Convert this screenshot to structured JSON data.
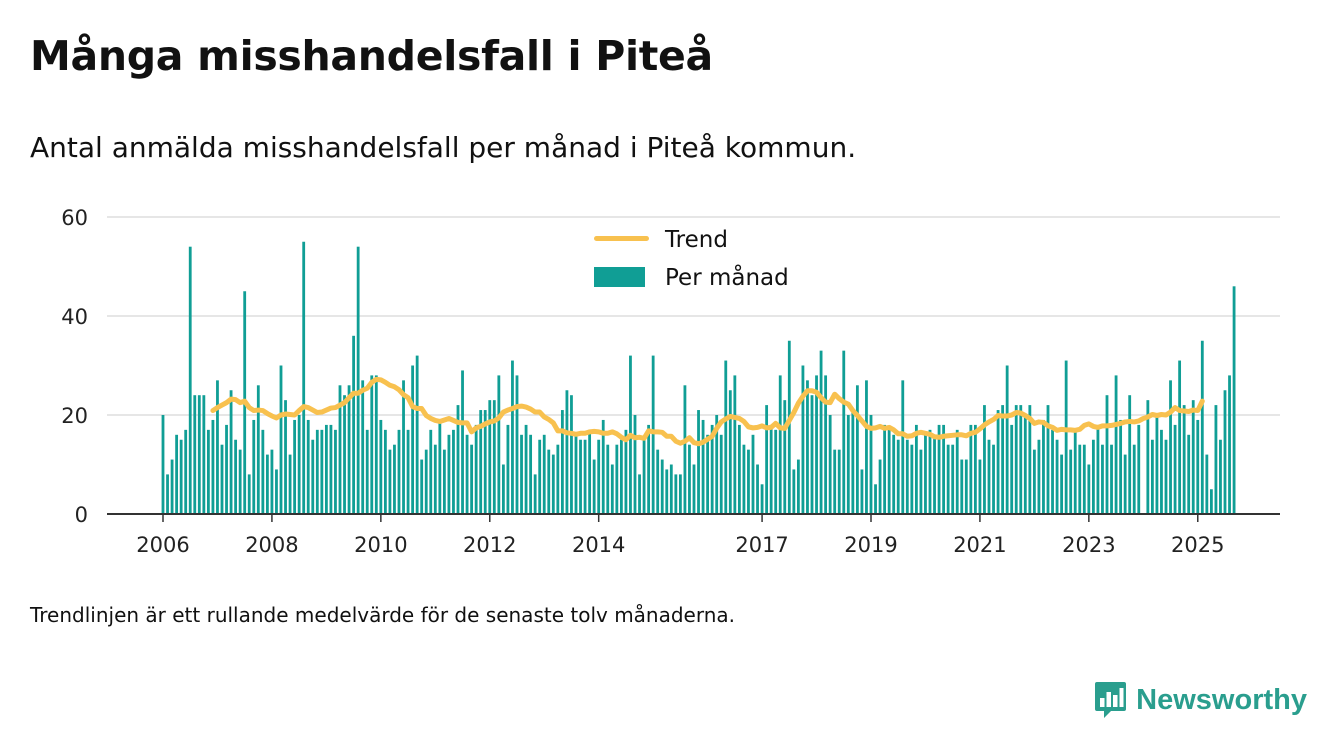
{
  "title": "Många misshandelsfall i Piteå",
  "subtitle": "Antal anmälda misshandelsfall per månad i Piteå kommun.",
  "footnote": "Trendlinjen är ett rullande medelvärde för de senaste tolv månaderna.",
  "brand": {
    "name": "Newsworthy",
    "icon": "newsworthy-logo-icon",
    "color": "#2a9e8e"
  },
  "chart_data": {
    "type": "bar",
    "x_unit": "month",
    "x_start": "2006-01",
    "x_end": "2025-07",
    "ylim": [
      0,
      60
    ],
    "y_ticks": [
      "0",
      "20",
      "40",
      "60"
    ],
    "x_ticks": [
      "2006",
      "2008",
      "2010",
      "2012",
      "2014",
      "2017",
      "2019",
      "2021",
      "2023",
      "2025"
    ],
    "grid": true,
    "legend_position": "top-center",
    "colors": {
      "bars": "#109e95",
      "trend": "#f8c14f",
      "grid": "#dddddd",
      "axis": "#333333"
    },
    "series": [
      {
        "name": "Per månad",
        "type": "bar",
        "values": [
          20,
          8,
          11,
          16,
          15,
          17,
          54,
          24,
          24,
          24,
          17,
          19,
          27,
          14,
          18,
          25,
          15,
          13,
          45,
          8,
          19,
          26,
          17,
          12,
          13,
          9,
          30,
          23,
          12,
          19,
          20,
          55,
          19,
          15,
          17,
          17,
          18,
          18,
          17,
          26,
          24,
          26,
          36,
          54,
          27,
          17,
          28,
          28,
          19,
          17,
          13,
          14,
          17,
          27,
          17,
          30,
          32,
          11,
          13,
          17,
          14,
          19,
          13,
          16,
          17,
          22,
          29,
          16,
          14,
          18,
          21,
          21,
          23,
          23,
          28,
          10,
          18,
          31,
          28,
          16,
          18,
          16,
          8,
          15,
          16,
          13,
          12,
          14,
          21,
          25,
          24,
          16,
          15,
          15,
          17,
          11,
          15,
          19,
          14,
          10,
          14,
          15,
          17,
          32,
          20,
          8,
          15,
          18,
          32,
          13,
          11,
          9,
          10,
          8,
          8,
          26,
          14,
          10,
          21,
          19,
          16,
          18,
          20,
          16,
          31,
          25,
          28,
          18,
          14,
          13,
          16,
          10,
          6,
          22,
          18,
          17,
          28,
          23,
          35,
          9,
          11,
          30,
          27,
          24,
          28,
          33,
          28,
          20,
          13,
          13,
          33,
          20,
          21,
          26,
          9,
          27,
          20,
          6,
          11,
          18,
          17,
          16,
          15,
          27,
          15,
          14,
          18,
          13,
          16,
          17,
          16,
          18,
          18,
          14,
          14,
          17,
          11,
          11,
          18,
          18,
          11,
          22,
          15,
          14,
          21,
          22,
          30,
          18,
          22,
          22,
          20,
          22,
          13,
          15,
          19,
          22,
          17,
          15,
          12,
          31,
          13,
          17,
          14,
          14,
          10,
          15,
          18,
          14,
          24,
          14,
          28,
          19,
          12,
          24,
          14,
          18,
          0,
          23,
          15,
          20,
          17,
          15,
          27,
          18,
          31,
          22,
          16,
          23,
          19,
          35,
          12,
          5,
          22,
          15,
          25,
          28,
          46
        ]
      },
      {
        "name": "Trend",
        "type": "line",
        "values": [
          null,
          null,
          null,
          null,
          null,
          null,
          null,
          null,
          null,
          null,
          null,
          20.9,
          21.5,
          22,
          22.5,
          23.2,
          23.1,
          22.5,
          22.8,
          21.5,
          20.9,
          21,
          20.9,
          20.3,
          19.8,
          19.4,
          20,
          20.2,
          20.1,
          20,
          20.9,
          21.7,
          21.5,
          21,
          20.5,
          20.6,
          21,
          21.4,
          21.5,
          22,
          22.5,
          23.5,
          24.4,
          24.4,
          25,
          25.4,
          26.6,
          27.2,
          27.1,
          26.6,
          26,
          25.7,
          25.1,
          24.1,
          23.5,
          21.7,
          21.3,
          21.3,
          19.9,
          19.3,
          18.9,
          18.7,
          19,
          19.3,
          18.9,
          18.5,
          18.4,
          18.4,
          16.6,
          17.4,
          17.7,
          18.2,
          18.6,
          18.8,
          19.4,
          20.6,
          21,
          21.3,
          21.7,
          21.8,
          21.6,
          21.2,
          20.6,
          20.6,
          19.6,
          19.1,
          18.4,
          16.8,
          16.8,
          16.4,
          16.3,
          16.1,
          16.3,
          16.3,
          16.6,
          16.7,
          16.6,
          16.3,
          16.3,
          16.6,
          16.2,
          15.5,
          15,
          15.9,
          15.4,
          15.5,
          15.3,
          16.8,
          16.6,
          16.6,
          16.5,
          15.7,
          15.7,
          14.7,
          14.3,
          14.7,
          15.4,
          14.4,
          14.2,
          14.5,
          15.1,
          15.7,
          17.3,
          18.6,
          19.2,
          19.7,
          19.5,
          19.3,
          18.7,
          17.6,
          17.4,
          17.5,
          17.8,
          17.4,
          17.5,
          18.3,
          17.4,
          17.3,
          18.9,
          20.5,
          22.4,
          23.8,
          24.9,
          24.9,
          24.6,
          23.5,
          22.6,
          22.5,
          24.2,
          23.3,
          22.6,
          22.2,
          20.9,
          19.9,
          18.8,
          17.7,
          17.3,
          17.4,
          17.7,
          17.3,
          17.5,
          17,
          16.2,
          16.2,
          15.7,
          15.8,
          16.3,
          16.5,
          16.3,
          16.1,
          15.6,
          15.5,
          15.7,
          15.8,
          15.9,
          16,
          16,
          15.8,
          16.3,
          16.5,
          17.2,
          18,
          18.6,
          19.1,
          19.9,
          19.8,
          19.8,
          20,
          20.5,
          20.4,
          19.9,
          19.3,
          18.3,
          18.6,
          18.5,
          17.8,
          17.5,
          16.9,
          17.1,
          17,
          17,
          16.9,
          17.1,
          17.9,
          18.2,
          17.7,
          17.5,
          17.8,
          17.8,
          17.9,
          18.1,
          18.3,
          18.6,
          18.7,
          18.6,
          18.8,
          19.3,
          19.6,
          20.1,
          19.9,
          20.1,
          20,
          20.6,
          21.5,
          20.9,
          20.8,
          20.7,
          21,
          20.9,
          22.8
        ]
      }
    ]
  }
}
